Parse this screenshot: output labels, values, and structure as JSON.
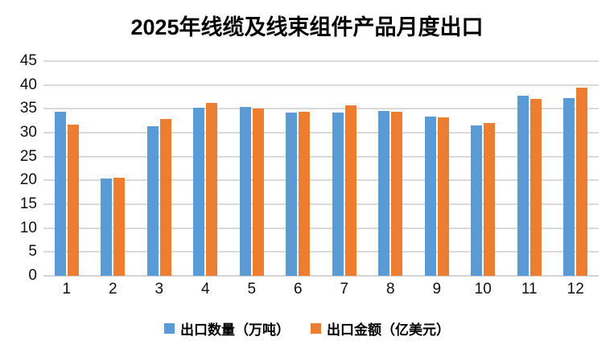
{
  "title": "2025年线缆及线束组件产品月度出口",
  "colors": {
    "series_quantity": "#5B9BD5",
    "series_value": "#ED7D31",
    "gridline": "#D9D9D9",
    "text": "#000000"
  },
  "chart_data": {
    "type": "bar",
    "title": "2025年线缆及线束组件产品月度出口",
    "categories": [
      "1",
      "2",
      "3",
      "4",
      "5",
      "6",
      "7",
      "8",
      "9",
      "10",
      "11",
      "12"
    ],
    "series": [
      {
        "name": "出口数量（万吨）",
        "color": "#5B9BD5",
        "values": [
          34.4,
          20.4,
          31.4,
          35.3,
          35.4,
          34.2,
          34.3,
          34.6,
          33.4,
          31.5,
          37.8,
          37.3
        ]
      },
      {
        "name": "出口金额（亿美元）",
        "color": "#ED7D31",
        "values": [
          31.7,
          20.6,
          32.8,
          36.2,
          35.1,
          34.4,
          35.7,
          34.4,
          33.2,
          32.0,
          37.0,
          39.5
        ]
      }
    ],
    "xlabel": "",
    "ylabel": "",
    "ylim": [
      0,
      45
    ],
    "yticks": [
      0,
      5,
      10,
      15,
      20,
      25,
      30,
      35,
      40,
      45
    ],
    "grid": true,
    "legend_position": "bottom"
  }
}
